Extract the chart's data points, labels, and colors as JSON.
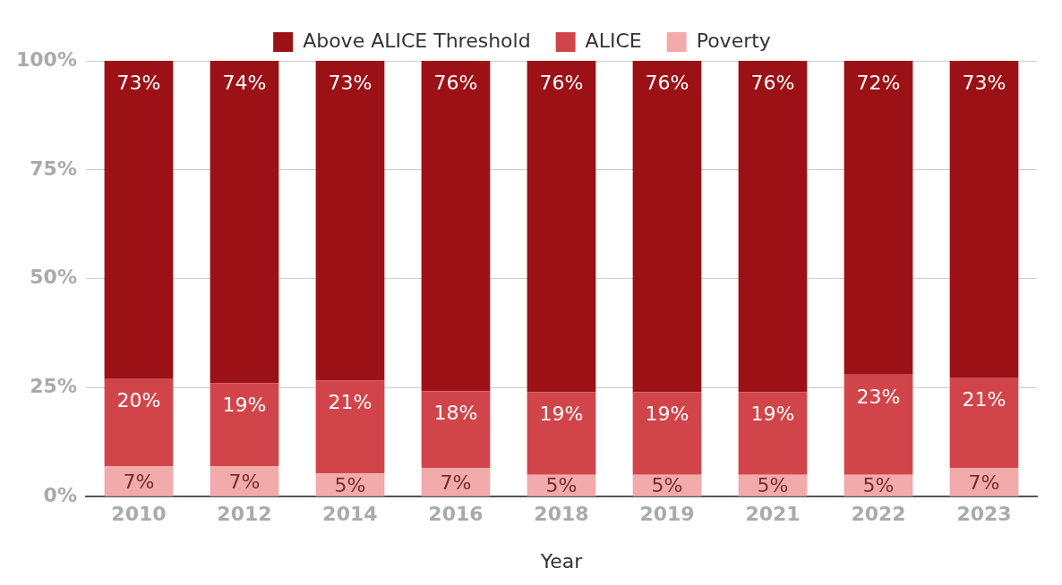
{
  "chart_data": {
    "type": "bar",
    "xlabel": "Year",
    "categories": [
      "2010",
      "2012",
      "2014",
      "2016",
      "2018",
      "2019",
      "2021",
      "2022",
      "2023"
    ],
    "series": [
      {
        "name": "Poverty",
        "color": "#f2aaaa",
        "values": [
          7,
          7,
          5.4,
          6.6,
          5,
          5,
          5,
          5,
          6.6
        ],
        "value_labels": [
          "7%",
          "7%",
          "5%",
          "7%",
          "5%",
          "5%",
          "5%",
          "5%",
          "7%"
        ]
      },
      {
        "name": "ALICE",
        "color": "#d1454a",
        "values": [
          20,
          19,
          21.2,
          17.6,
          19,
          19,
          19,
          23,
          20.6
        ],
        "value_labels": [
          "20%",
          "19%",
          "21%",
          "18%",
          "19%",
          "19%",
          "19%",
          "23%",
          "21%"
        ]
      },
      {
        "name": "Above ALICE Threshold",
        "color": "#9b1116",
        "values": [
          73,
          74,
          73.4,
          75.8,
          76,
          76,
          76,
          72,
          72.8
        ],
        "value_labels": [
          "73%",
          "74%",
          "73%",
          "76%",
          "76%",
          "76%",
          "76%",
          "72%",
          "73%"
        ]
      }
    ],
    "stacked": true,
    "ylim": [
      0,
      100
    ],
    "yticks": [
      {
        "value": 0,
        "label": "0%"
      },
      {
        "value": 25,
        "label": "25%"
      },
      {
        "value": 50,
        "label": "50%"
      },
      {
        "value": 75,
        "label": "75%"
      },
      {
        "value": 100,
        "label": "100%"
      }
    ],
    "grid": "y",
    "legend": "top"
  }
}
